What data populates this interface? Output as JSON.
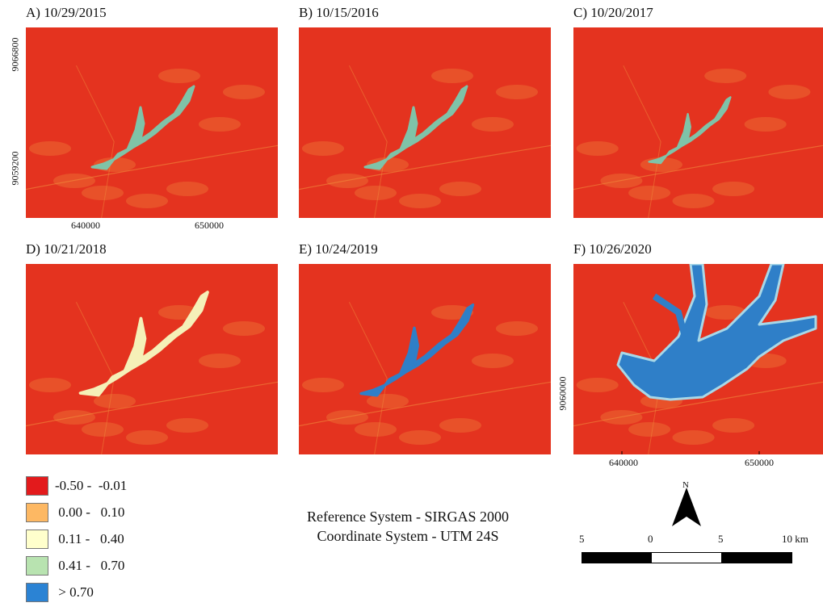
{
  "panels": [
    {
      "id": "A",
      "title": "A) 10/29/2015",
      "class": "light"
    },
    {
      "id": "B",
      "title": "B) 10/15/2016",
      "class": "light"
    },
    {
      "id": "C",
      "title": "C) 10/20/2017",
      "class": "light"
    },
    {
      "id": "D",
      "title": "D) 10/21/2018",
      "class": "pale"
    },
    {
      "id": "E",
      "title": "E) 10/24/2019",
      "class": "water"
    },
    {
      "id": "F",
      "title": "F) 10/26/2020",
      "class": "water"
    }
  ],
  "axes_a": {
    "x_ticks": [
      "640000",
      "650000"
    ],
    "y_ticks": [
      "9066800",
      "9059200"
    ]
  },
  "axes_f": {
    "x_ticks": [
      "640000",
      "650000"
    ],
    "y_ticks": [
      "9060000"
    ]
  },
  "legend": [
    {
      "label": "-0.50 -  -0.01",
      "color": "#e31a1c"
    },
    {
      "label": " 0.00 -   0.10",
      "color": "#fdb863"
    },
    {
      "label": " 0.11 -   0.40",
      "color": "#ffffcc"
    },
    {
      "label": " 0.41 -   0.70",
      "color": "#b8e3b0"
    },
    {
      "label": " > 0.70",
      "color": "#2b83d4"
    }
  ],
  "reference": {
    "line1": "Reference System - SIRGAS 2000",
    "line2": "Coordinate System - UTM 24S"
  },
  "north_label": "N",
  "scalebar": {
    "labels": [
      "5",
      "0",
      "5",
      "10 km"
    ]
  },
  "colors": {
    "red": "#e4331f",
    "orange": "#f08a3c",
    "teal": "#7fc3a8",
    "pale": "#f5f0b8",
    "blue": "#2f7fc8"
  }
}
